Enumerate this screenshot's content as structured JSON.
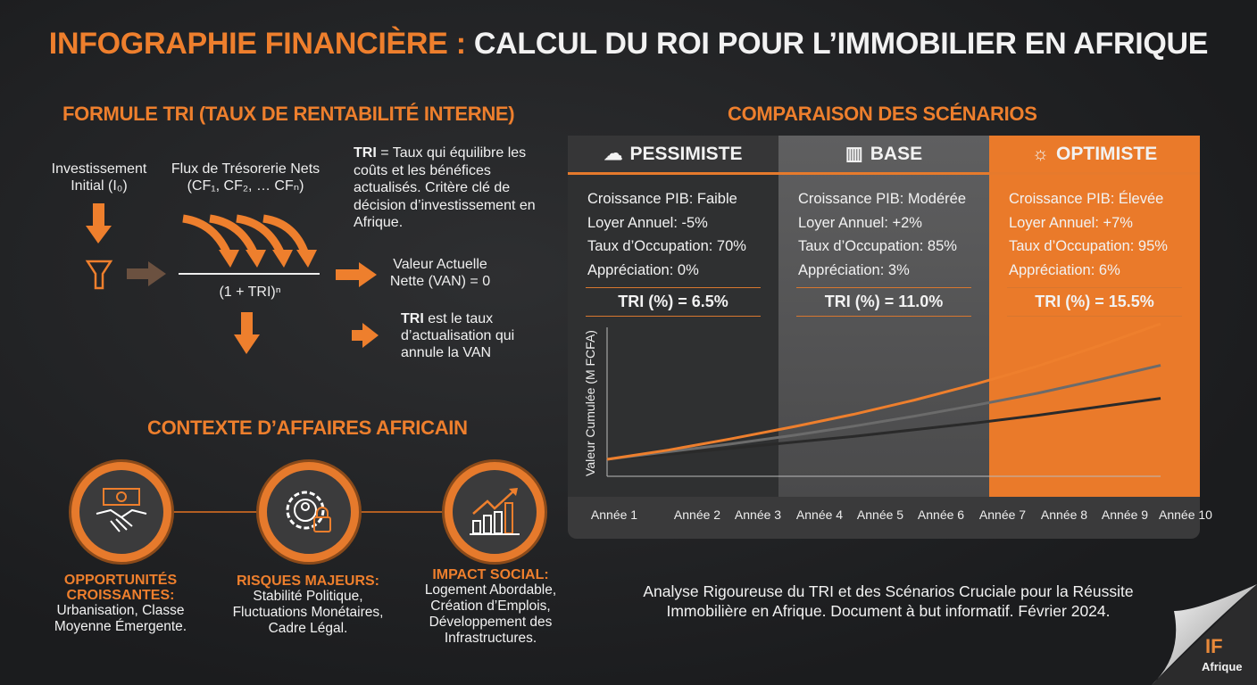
{
  "title": {
    "part1": "INFOGRAPHIE FINANCIÈRE :",
    "part2": "CALCUL DU ROI POUR L’IMMOBILIER EN AFRIQUE"
  },
  "formula": {
    "heading": "FORMULE TRI (TAUX DE RENTABILITÉ INTERNE)",
    "investment": "Investissement Initial (I₀)",
    "flows": "Flux de Trésorerie Nets (CF₁, CF₂, … CFₙ)",
    "denominator": "(1 + TRI)ⁿ",
    "definition_bold": "TRI",
    "definition": " = Taux qui équilibre les coûts et les bénéfices actualisés. Critère clé de décision d’investissement en Afrique.",
    "van": "Valeur Actuelle Nette (VAN) = 0",
    "tri_note_bold": "TRI",
    "tri_note": " est le taux d’actualisation qui annule la VAN"
  },
  "context": {
    "heading": "CONTEXTE D’AFFAIRES AFRICAIN",
    "items": [
      {
        "icon": "handshake-money-icon",
        "title": "OPPORTUNITÉS CROISSANTES:",
        "body": "Urbanisation, Classe Moyenne Émergente."
      },
      {
        "icon": "gear-lock-icon",
        "title": "RISQUES MAJEURS:",
        "body": "Stabilité Politique, Fluctuations Monétaires, Cadre Légal."
      },
      {
        "icon": "growth-chart-icon",
        "title": "IMPACT SOCIAL:",
        "body": "Logement Abordable, Création d’Emplois, Développement des Infrastructures."
      }
    ]
  },
  "scenarios": {
    "heading": "COMPARAISON DES SCÉNARIOS",
    "columns": [
      {
        "name": "PESSIMISTE",
        "icon": "rain-cloud-icon",
        "color": "#3a3a3b",
        "lines": [
          "Croissance PIB: Faible",
          "Loyer Annuel: -5%",
          "Taux d’Occupation: 70%",
          "Appréciation: 0%"
        ],
        "tri": "TRI (%) = 6.5%"
      },
      {
        "name": "BASE",
        "icon": "building-icon",
        "color": "#5f5f60",
        "lines": [
          "Croissance PIB: Modérée",
          "Loyer Annuel: +2%",
          "Taux d’Occupation: 85%",
          "Appréciation: 3%"
        ],
        "tri": "TRI (%) = 11.0%"
      },
      {
        "name": "OPTIMISTE",
        "icon": "sun-growth-icon",
        "color": "#ea7a2a",
        "lines": [
          "Croissance PIB: Élevée",
          "Loyer Annuel: +7%",
          "Taux d’Occupation: 95%",
          "Appréciation: 6%"
        ],
        "tri": "TRI (%) = 15.5%"
      }
    ]
  },
  "chart_data": {
    "type": "line",
    "title": "",
    "xlabel": "",
    "ylabel": "Valeur Cumulée (M FCFA)",
    "categories": [
      "Année 1",
      "Année 2",
      "Année 3",
      "Année 4",
      "Année 5",
      "Année 6",
      "Année 7",
      "Année 8",
      "Année 9",
      "Année 10"
    ],
    "ylim": [
      80,
      280
    ],
    "grid": false,
    "series": [
      {
        "name": "Optimiste",
        "color": "#ee7f2d",
        "values": [
          100,
          111,
          124,
          138,
          153,
          170,
          189,
          210,
          234,
          260
        ]
      },
      {
        "name": "Base",
        "color": "#6b6b6b",
        "values": [
          100,
          109,
          118,
          128,
          139,
          151,
          164,
          178,
          194,
          211
        ]
      },
      {
        "name": "Pessimiste",
        "color": "#2a2a2a",
        "values": [
          100,
          106,
          113,
          120,
          127,
          135,
          143,
          152,
          162,
          172
        ]
      }
    ]
  },
  "footer": "Analyse Rigoureuse du TRI et des Scénarios Cruciale pour la Réussite Immobilière en Afrique. Document à but informatif. Février 2024.",
  "logo": {
    "mark": "IF",
    "text": "Afrique"
  }
}
